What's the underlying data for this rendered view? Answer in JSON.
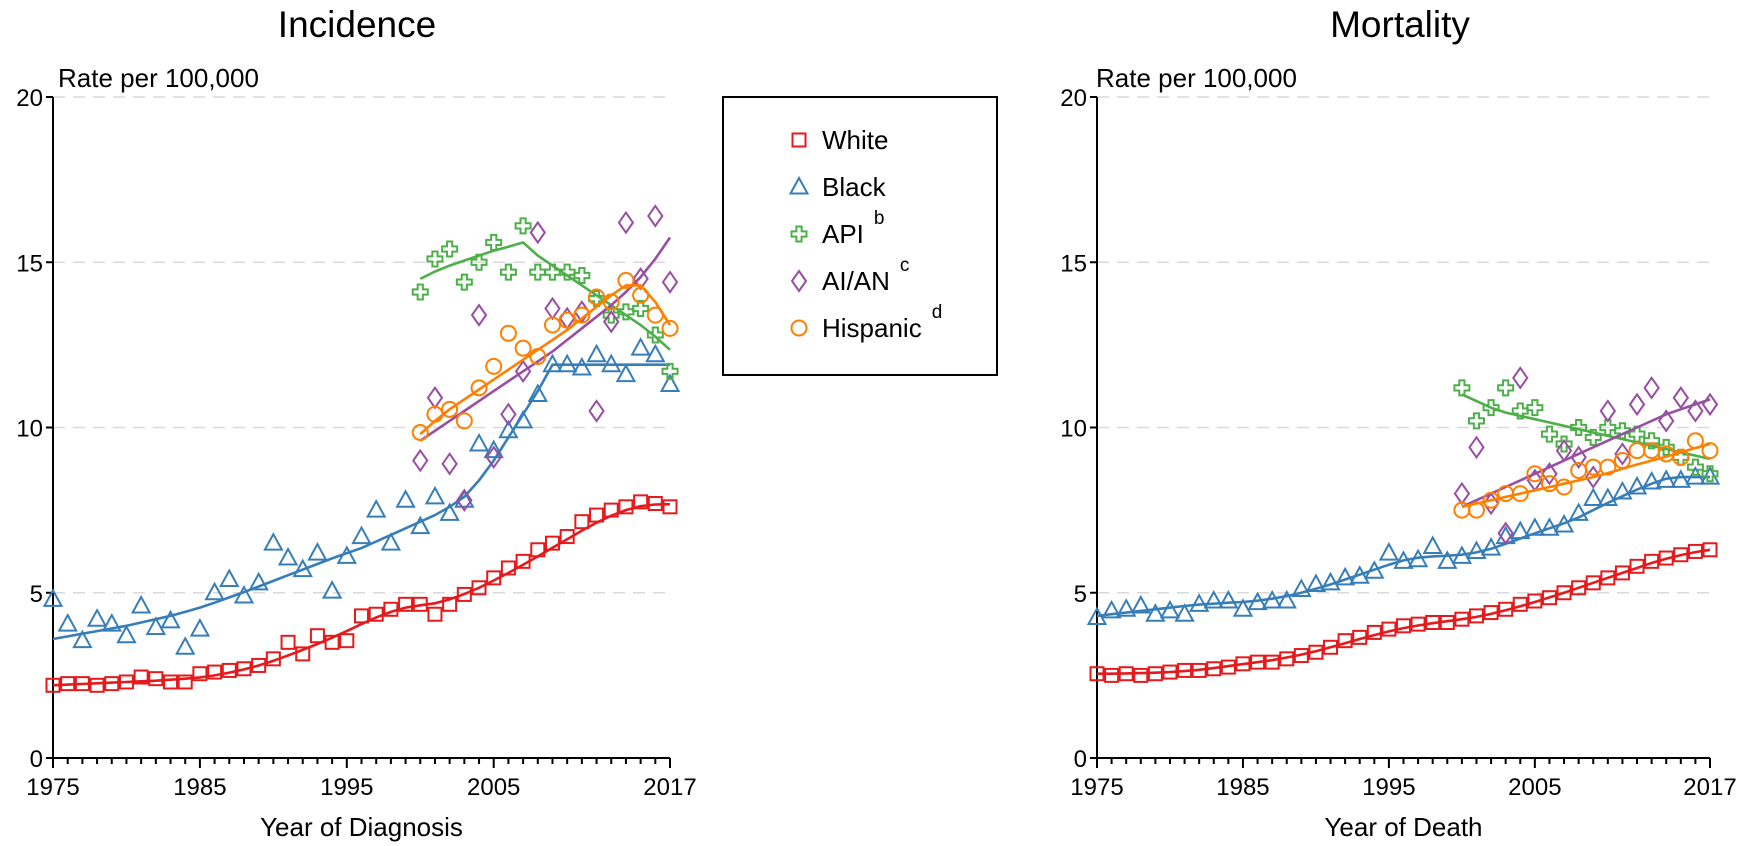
{
  "legend": {
    "items": [
      {
        "label": "White",
        "sup": "",
        "color": "#e41a1c",
        "marker": "square"
      },
      {
        "label": "Black",
        "sup": "",
        "color": "#377eb8",
        "marker": "triangle"
      },
      {
        "label": "API",
        "sup": "b",
        "color": "#4daf4a",
        "marker": "plus"
      },
      {
        "label": "AI/AN",
        "sup": "c",
        "color": "#984ea3",
        "marker": "diamond"
      },
      {
        "label": "Hispanic",
        "sup": "d",
        "color": "#ff7f00",
        "marker": "circle"
      }
    ]
  },
  "chart_data": [
    {
      "type": "scatter",
      "title": "Incidence",
      "xlabel": "Year of Diagnosis",
      "ylabel": "Rate per 100,000",
      "xlim": [
        1975,
        2017
      ],
      "ylim": [
        0,
        20
      ],
      "xticks": [
        1975,
        1985,
        1995,
        2005,
        2017
      ],
      "yticks": [
        0,
        5,
        10,
        15,
        20
      ],
      "grid": "horizontal dashed",
      "series": [
        {
          "name": "White",
          "color": "#e41a1c",
          "marker": "square",
          "x": [
            1975,
            1976,
            1977,
            1978,
            1979,
            1980,
            1981,
            1982,
            1983,
            1984,
            1985,
            1986,
            1987,
            1988,
            1989,
            1990,
            1991,
            1992,
            1993,
            1994,
            1995,
            1996,
            1997,
            1998,
            1999,
            2000,
            2001,
            2002,
            2003,
            2004,
            2005,
            2006,
            2007,
            2008,
            2009,
            2010,
            2011,
            2012,
            2013,
            2014,
            2015,
            2016,
            2017
          ],
          "y": [
            2.2,
            2.25,
            2.25,
            2.2,
            2.25,
            2.3,
            2.45,
            2.4,
            2.3,
            2.3,
            2.55,
            2.6,
            2.65,
            2.7,
            2.8,
            3.0,
            3.5,
            3.15,
            3.7,
            3.5,
            3.55,
            4.3,
            4.35,
            4.5,
            4.65,
            4.65,
            4.35,
            4.65,
            4.95,
            5.15,
            5.45,
            5.75,
            5.95,
            6.3,
            6.5,
            6.7,
            7.15,
            7.35,
            7.5,
            7.6,
            7.75,
            7.7,
            7.6
          ],
          "trend": [
            2.2,
            2.22,
            2.24,
            2.26,
            2.28,
            2.3,
            2.32,
            2.34,
            2.37,
            2.4,
            2.44,
            2.5,
            2.58,
            2.68,
            2.8,
            2.94,
            3.1,
            3.27,
            3.45,
            3.64,
            3.84,
            4.05,
            4.25,
            4.42,
            4.55,
            4.62,
            4.68,
            4.8,
            4.96,
            5.15,
            5.37,
            5.6,
            5.85,
            6.1,
            6.36,
            6.62,
            6.88,
            7.12,
            7.33,
            7.5,
            7.62,
            7.67,
            7.68
          ]
        },
        {
          "name": "Black",
          "color": "#377eb8",
          "marker": "triangle",
          "x": [
            1975,
            1976,
            1977,
            1978,
            1979,
            1980,
            1981,
            1982,
            1983,
            1984,
            1985,
            1986,
            1987,
            1988,
            1989,
            1990,
            1991,
            1992,
            1993,
            1994,
            1995,
            1996,
            1997,
            1998,
            1999,
            2000,
            2001,
            2002,
            2003,
            2004,
            2005,
            2006,
            2007,
            2008,
            2009,
            2010,
            2011,
            2012,
            2013,
            2014,
            2015,
            2016,
            2017
          ],
          "y": [
            4.8,
            4.05,
            3.55,
            4.2,
            4.05,
            3.7,
            4.6,
            3.95,
            4.15,
            3.35,
            3.9,
            5.0,
            5.4,
            4.9,
            5.3,
            6.5,
            6.05,
            5.7,
            6.2,
            5.05,
            6.1,
            6.7,
            7.5,
            6.5,
            7.8,
            7.0,
            7.9,
            7.4,
            7.8,
            9.5,
            9.3,
            9.9,
            10.2,
            11.0,
            11.9,
            11.9,
            11.8,
            12.2,
            11.9,
            11.6,
            12.4,
            12.2,
            11.3
          ],
          "trend": [
            3.6,
            3.68,
            3.76,
            3.84,
            3.92,
            4.0,
            4.1,
            4.2,
            4.3,
            4.42,
            4.55,
            4.7,
            4.86,
            5.02,
            5.19,
            5.36,
            5.53,
            5.7,
            5.87,
            6.04,
            6.2,
            6.35,
            6.55,
            6.75,
            6.95,
            7.15,
            7.35,
            7.6,
            7.9,
            8.4,
            9.0,
            9.7,
            10.4,
            11.1,
            11.9,
            11.9,
            11.9,
            11.9,
            11.9,
            11.9,
            11.9,
            11.9,
            11.9
          ]
        },
        {
          "name": "API",
          "color": "#4daf4a",
          "marker": "plus",
          "x": [
            2000,
            2001,
            2002,
            2003,
            2004,
            2005,
            2006,
            2007,
            2008,
            2009,
            2010,
            2011,
            2012,
            2013,
            2014,
            2015,
            2016,
            2017
          ],
          "y": [
            14.1,
            15.1,
            15.4,
            14.4,
            15.0,
            15.6,
            14.7,
            16.1,
            14.7,
            14.7,
            14.7,
            14.6,
            13.9,
            13.4,
            13.5,
            13.6,
            12.8,
            11.7
          ],
          "trend": [
            14.5,
            14.72,
            14.9,
            15.05,
            15.2,
            15.35,
            15.47,
            15.6,
            15.2,
            14.9,
            14.6,
            14.3,
            14.0,
            13.7,
            13.4,
            13.1,
            12.75,
            12.35
          ]
        },
        {
          "name": "AI/AN",
          "color": "#984ea3",
          "marker": "diamond",
          "x": [
            2000,
            2001,
            2002,
            2003,
            2004,
            2005,
            2006,
            2007,
            2008,
            2009,
            2010,
            2011,
            2012,
            2013,
            2014,
            2015,
            2016,
            2017
          ],
          "y": [
            9.0,
            10.9,
            8.9,
            7.8,
            13.4,
            9.1,
            10.4,
            11.7,
            15.9,
            13.6,
            13.3,
            13.5,
            10.5,
            13.2,
            16.2,
            14.5,
            16.4,
            14.4
          ],
          "trend": [
            9.6,
            9.9,
            10.2,
            10.5,
            10.8,
            11.1,
            11.4,
            11.7,
            12.0,
            12.3,
            12.65,
            13.0,
            13.35,
            13.7,
            14.1,
            14.55,
            15.1,
            15.75
          ]
        },
        {
          "name": "Hispanic",
          "color": "#ff7f00",
          "marker": "circle",
          "x": [
            2000,
            2001,
            2002,
            2003,
            2004,
            2005,
            2006,
            2007,
            2008,
            2009,
            2010,
            2011,
            2012,
            2013,
            2014,
            2015,
            2016,
            2017
          ],
          "y": [
            9.85,
            10.4,
            10.55,
            10.2,
            11.2,
            11.85,
            12.85,
            12.4,
            12.15,
            13.1,
            13.25,
            13.4,
            13.95,
            13.8,
            14.45,
            14.0,
            13.4,
            13.0
          ],
          "trend": [
            9.8,
            10.2,
            10.55,
            10.85,
            11.15,
            11.45,
            11.75,
            12.05,
            12.35,
            12.65,
            12.95,
            13.3,
            13.65,
            14.0,
            14.3,
            14.3,
            13.8,
            13.1
          ]
        }
      ]
    },
    {
      "type": "scatter",
      "title": "Mortality",
      "xlabel": "Year of Death",
      "ylabel": "Rate per 100,000",
      "xlim": [
        1975,
        2017
      ],
      "ylim": [
        0,
        20
      ],
      "xticks": [
        1975,
        1985,
        1995,
        2005,
        2017
      ],
      "yticks": [
        0,
        5,
        10,
        15,
        20
      ],
      "grid": "horizontal dashed",
      "series": [
        {
          "name": "White",
          "color": "#e41a1c",
          "marker": "square",
          "x": [
            1975,
            1976,
            1977,
            1978,
            1979,
            1980,
            1981,
            1982,
            1983,
            1984,
            1985,
            1986,
            1987,
            1988,
            1989,
            1990,
            1991,
            1992,
            1993,
            1994,
            1995,
            1996,
            1997,
            1998,
            1999,
            2000,
            2001,
            2002,
            2003,
            2004,
            2005,
            2006,
            2007,
            2008,
            2009,
            2010,
            2011,
            2012,
            2013,
            2014,
            2015,
            2016,
            2017
          ],
          "y": [
            2.55,
            2.5,
            2.55,
            2.5,
            2.55,
            2.6,
            2.65,
            2.65,
            2.7,
            2.75,
            2.85,
            2.9,
            2.9,
            3.0,
            3.1,
            3.2,
            3.35,
            3.55,
            3.65,
            3.8,
            3.9,
            4.0,
            4.05,
            4.1,
            4.1,
            4.2,
            4.3,
            4.4,
            4.5,
            4.65,
            4.75,
            4.85,
            5.0,
            5.15,
            5.3,
            5.45,
            5.6,
            5.8,
            5.95,
            6.05,
            6.15,
            6.25,
            6.3
          ],
          "trend": [
            2.55,
            2.55,
            2.56,
            2.57,
            2.58,
            2.6,
            2.63,
            2.67,
            2.72,
            2.78,
            2.84,
            2.9,
            2.96,
            3.04,
            3.13,
            3.23,
            3.35,
            3.47,
            3.6,
            3.72,
            3.83,
            3.93,
            4.01,
            4.08,
            4.14,
            4.2,
            4.27,
            4.36,
            4.47,
            4.59,
            4.72,
            4.86,
            5.0,
            5.15,
            5.3,
            5.45,
            5.6,
            5.75,
            5.9,
            6.03,
            6.14,
            6.23,
            6.3
          ]
        },
        {
          "name": "Black",
          "color": "#377eb8",
          "marker": "triangle",
          "x": [
            1975,
            1976,
            1977,
            1978,
            1979,
            1980,
            1981,
            1982,
            1983,
            1984,
            1985,
            1986,
            1987,
            1988,
            1989,
            1990,
            1991,
            1992,
            1993,
            1994,
            1995,
            1996,
            1997,
            1998,
            1999,
            2000,
            2001,
            2002,
            2003,
            2004,
            2005,
            2006,
            2007,
            2008,
            2009,
            2010,
            2011,
            2012,
            2013,
            2014,
            2015,
            2016,
            2017
          ],
          "y": [
            4.25,
            4.45,
            4.5,
            4.6,
            4.35,
            4.45,
            4.35,
            4.65,
            4.75,
            4.75,
            4.5,
            4.7,
            4.75,
            4.75,
            5.1,
            5.25,
            5.3,
            5.45,
            5.5,
            5.65,
            6.2,
            5.95,
            6.0,
            6.4,
            5.95,
            6.1,
            6.25,
            6.35,
            6.7,
            6.85,
            6.95,
            6.95,
            7.05,
            7.4,
            7.85,
            7.85,
            8.05,
            8.2,
            8.35,
            8.4,
            8.4,
            8.5,
            8.5
          ],
          "trend": [
            4.3,
            4.35,
            4.4,
            4.45,
            4.5,
            4.55,
            4.6,
            4.64,
            4.67,
            4.7,
            4.72,
            4.76,
            4.82,
            4.9,
            5.0,
            5.12,
            5.25,
            5.4,
            5.55,
            5.7,
            5.85,
            5.98,
            6.06,
            6.1,
            6.12,
            6.15,
            6.22,
            6.33,
            6.48,
            6.64,
            6.8,
            6.95,
            7.1,
            7.28,
            7.5,
            7.72,
            7.92,
            8.12,
            8.3,
            8.45,
            8.5,
            8.5,
            8.5
          ]
        },
        {
          "name": "API",
          "color": "#4daf4a",
          "marker": "plus",
          "x": [
            2000,
            2001,
            2002,
            2003,
            2004,
            2005,
            2006,
            2007,
            2008,
            2009,
            2010,
            2011,
            2012,
            2013,
            2014,
            2015,
            2016,
            2017
          ],
          "y": [
            11.2,
            10.2,
            10.6,
            11.2,
            10.5,
            10.6,
            9.8,
            9.5,
            10.0,
            9.7,
            10.0,
            9.9,
            9.8,
            9.6,
            9.4,
            9.1,
            8.8,
            8.6
          ],
          "trend": [
            11.0,
            10.8,
            10.6,
            10.45,
            10.35,
            10.25,
            10.15,
            10.05,
            9.95,
            9.85,
            9.75,
            9.65,
            9.55,
            9.45,
            9.35,
            9.25,
            9.15,
            9.05
          ]
        },
        {
          "name": "AI/AN",
          "color": "#984ea3",
          "marker": "diamond",
          "x": [
            2000,
            2001,
            2002,
            2003,
            2004,
            2005,
            2006,
            2007,
            2008,
            2009,
            2010,
            2011,
            2012,
            2013,
            2014,
            2015,
            2016,
            2017
          ],
          "y": [
            8.0,
            9.4,
            7.7,
            6.8,
            11.5,
            8.4,
            8.6,
            9.3,
            9.1,
            8.5,
            10.5,
            9.2,
            10.7,
            11.2,
            10.2,
            10.9,
            10.5,
            10.7
          ],
          "trend": [
            7.6,
            7.8,
            8.0,
            8.2,
            8.4,
            8.6,
            8.8,
            9.0,
            9.2,
            9.4,
            9.6,
            9.8,
            10.0,
            10.2,
            10.4,
            10.55,
            10.7,
            10.85
          ]
        },
        {
          "name": "Hispanic",
          "color": "#ff7f00",
          "marker": "circle",
          "x": [
            2000,
            2001,
            2002,
            2003,
            2004,
            2005,
            2006,
            2007,
            2008,
            2009,
            2010,
            2011,
            2012,
            2013,
            2014,
            2015,
            2016,
            2017
          ],
          "y": [
            7.5,
            7.5,
            7.8,
            8.0,
            8.0,
            8.6,
            8.3,
            8.2,
            8.7,
            8.8,
            8.8,
            9.0,
            9.3,
            9.3,
            9.2,
            9.1,
            9.6,
            9.3
          ],
          "trend": [
            7.6,
            7.7,
            7.8,
            7.9,
            8.0,
            8.1,
            8.2,
            8.3,
            8.4,
            8.5,
            8.62,
            8.75,
            8.88,
            9.0,
            9.12,
            9.25,
            9.38,
            9.5
          ]
        }
      ]
    }
  ]
}
